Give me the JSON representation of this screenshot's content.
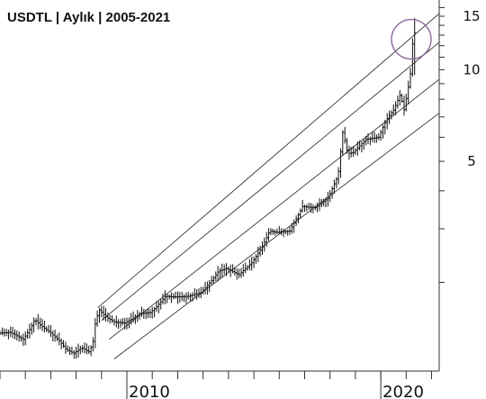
{
  "chart_data": {
    "type": "line",
    "subtype": "monthly-ohlc-bars",
    "title": "USDTL | Aylık | 2005-2021",
    "y_scale": "log",
    "ylim": [
      1.05,
      16.5
    ],
    "xlim": [
      2005.0,
      2022.3
    ],
    "y_ticks": [
      {
        "value": 15,
        "label": "15"
      },
      {
        "value": 10,
        "label": "10"
      },
      {
        "value": 5,
        "label": "5"
      }
    ],
    "x_ticks": [
      {
        "value": 2010,
        "label": "2010"
      },
      {
        "value": 2020,
        "label": "2020"
      }
    ],
    "x_minor_ticks": [
      2005,
      2006,
      2007,
      2008,
      2009,
      2010,
      2011,
      2012,
      2013,
      2014,
      2015,
      2016,
      2017,
      2018,
      2019,
      2020,
      2021,
      2022
    ],
    "series": [
      {
        "x": [
          2005.0,
          2005.5,
          2006.0,
          2006.3,
          2006.45,
          2006.7,
          2007.0,
          2007.4,
          2007.7,
          2008.0,
          2008.3,
          2008.6,
          2008.75,
          2008.85,
          2009.0,
          2009.3,
          2009.6,
          2010.0,
          2010.3,
          2010.6,
          2011.0,
          2011.3,
          2011.6,
          2012.0,
          2012.5,
          2013.0,
          2013.4,
          2013.7,
          2014.0,
          2014.5,
          2015.0,
          2015.4,
          2015.7,
          2016.0,
          2016.5,
          2017.0,
          2017.5,
          2018.0,
          2018.4,
          2018.6,
          2018.7,
          2018.8,
          2019.0,
          2019.5,
          2020.0,
          2020.3,
          2020.6,
          2020.85,
          2021.0,
          2021.15,
          2021.3,
          2021.35
        ],
        "y": [
          1.36,
          1.37,
          1.3,
          1.42,
          1.51,
          1.44,
          1.38,
          1.29,
          1.2,
          1.17,
          1.22,
          1.18,
          1.28,
          1.5,
          1.62,
          1.53,
          1.48,
          1.47,
          1.52,
          1.58,
          1.59,
          1.68,
          1.8,
          1.79,
          1.8,
          1.85,
          2.02,
          2.18,
          2.22,
          2.12,
          2.32,
          2.6,
          2.95,
          2.92,
          2.95,
          3.55,
          3.52,
          3.78,
          4.5,
          6.4,
          5.6,
          5.3,
          5.35,
          5.9,
          6.0,
          6.85,
          7.4,
          8.3,
          7.4,
          8.6,
          10.3,
          13.2
        ]
      }
    ],
    "trend_channel_lines": [
      {
        "x": [
          2008.85,
          2022.3
        ],
        "y": [
          1.65,
          15.3
        ]
      },
      {
        "x": [
          2009.0,
          2022.3
        ],
        "y": [
          1.5,
          12.3
        ]
      },
      {
        "x": [
          2009.3,
          2022.3
        ],
        "y": [
          1.3,
          9.3
        ]
      },
      {
        "x": [
          2009.5,
          2022.3
        ],
        "y": [
          1.12,
          7.2
        ]
      }
    ],
    "annotations": [
      {
        "type": "circle",
        "x": 2021.2,
        "y": 12.6,
        "color": "#8e6a9e"
      }
    ],
    "grid": false,
    "colors": {
      "bars": "#111111",
      "channel": "#222222",
      "circle": "#8e6a9e",
      "axis": "#333333"
    }
  }
}
